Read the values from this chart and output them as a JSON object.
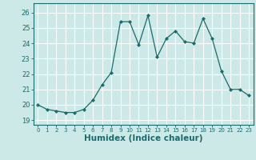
{
  "x": [
    0,
    1,
    2,
    3,
    4,
    5,
    6,
    7,
    8,
    9,
    10,
    11,
    12,
    13,
    14,
    15,
    16,
    17,
    18,
    19,
    20,
    21,
    22,
    23
  ],
  "y": [
    20.0,
    19.7,
    19.6,
    19.5,
    19.5,
    19.7,
    20.3,
    21.3,
    22.1,
    25.4,
    25.4,
    23.9,
    25.8,
    23.1,
    24.3,
    24.8,
    24.1,
    24.0,
    25.6,
    24.3,
    22.2,
    21.0,
    21.0,
    20.6
  ],
  "line_color": "#1a6b6b",
  "marker": "D",
  "marker_size": 2.0,
  "bg_color": "#cce9e7",
  "grid_color": "#ffffff",
  "tick_color": "#1a6b6b",
  "xlabel": "Humidex (Indice chaleur)",
  "xlabel_fontsize": 7.5,
  "ylabel_ticks": [
    19,
    20,
    21,
    22,
    23,
    24,
    25,
    26
  ],
  "ylim": [
    18.7,
    26.6
  ],
  "xlim": [
    -0.5,
    23.5
  ],
  "xtick_labels": [
    "0",
    "1",
    "2",
    "3",
    "4",
    "5",
    "6",
    "7",
    "8",
    "9",
    "10",
    "11",
    "12",
    "13",
    "14",
    "15",
    "16",
    "17",
    "18",
    "19",
    "20",
    "21",
    "22",
    "23"
  ]
}
